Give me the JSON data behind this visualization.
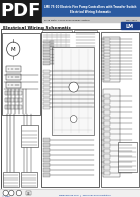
{
  "bg_color": "#ffffff",
  "header_dark": "#1a1a1a",
  "header_blue": "#2a5aa0",
  "pdf_text": "PDF",
  "page_bg": "#f0f0f0",
  "schematic_bg": "#ffffff",
  "border_dark": "#333333",
  "border_med": "#555555",
  "border_light": "#888888",
  "line_dark": "#222222",
  "line_med": "#444444",
  "fill_light": "#e8e8e8",
  "fill_med": "#d0d0d0",
  "fill_dark": "#b0b0b0",
  "footer_sep": "#cccccc",
  "blue_logo": "#1a3f8a",
  "text_dark": "#111111",
  "text_med": "#444444",
  "text_blue": "#003399"
}
